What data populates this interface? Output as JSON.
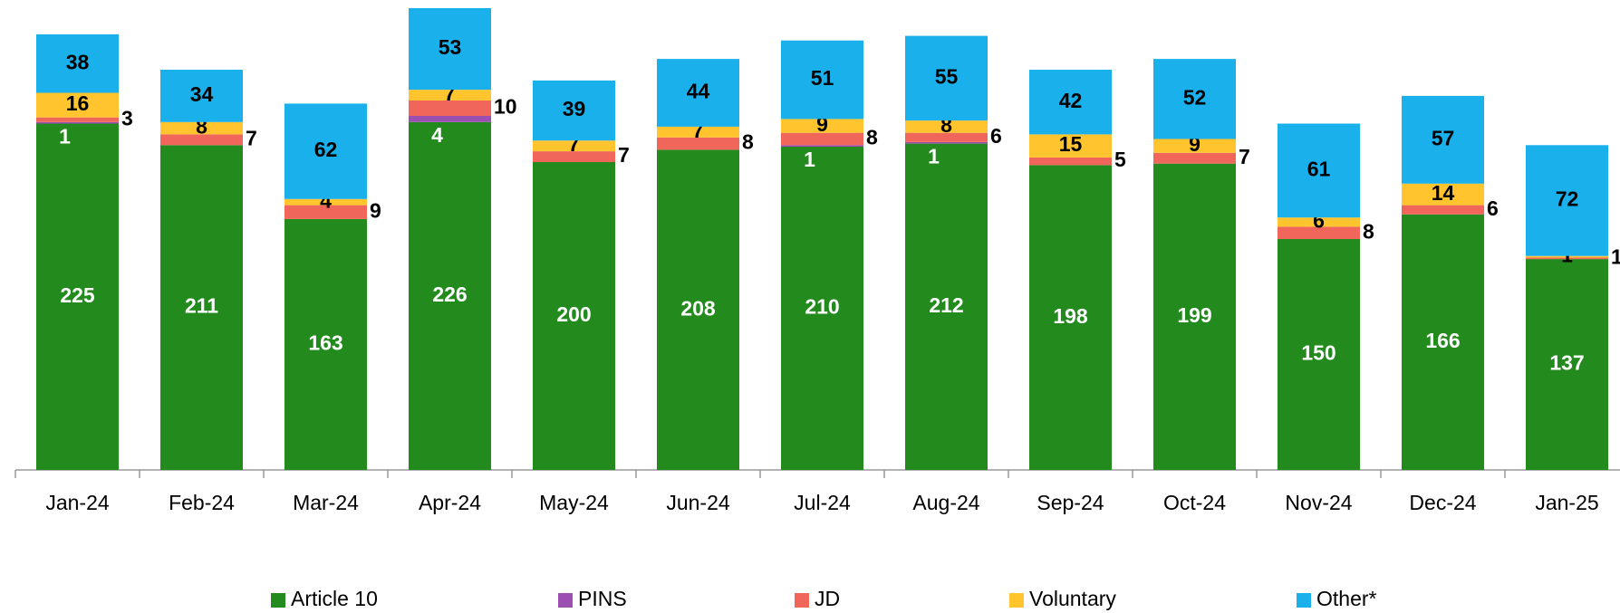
{
  "chart_data": {
    "type": "stacked-bar",
    "categories": [
      "Jan-24",
      "Feb-24",
      "Mar-24",
      "Apr-24",
      "May-24",
      "Jun-24",
      "Jul-24",
      "Aug-24",
      "Sep-24",
      "Oct-24",
      "Nov-24",
      "Dec-24",
      "Jan-25"
    ],
    "ylim": [
      0,
      300
    ],
    "legend": "bottom",
    "series": [
      {
        "name": "Article 10",
        "color": "#238b1e",
        "values": [
          225,
          211,
          163,
          226,
          200,
          208,
          210,
          212,
          198,
          199,
          150,
          166,
          137
        ]
      },
      {
        "name": "PINS",
        "color": "#9b4fb0",
        "values": [
          1,
          null,
          null,
          4,
          null,
          null,
          1,
          1,
          null,
          null,
          null,
          null,
          null
        ]
      },
      {
        "name": "JD",
        "color": "#f0665a",
        "values": [
          3,
          7,
          9,
          10,
          7,
          8,
          8,
          6,
          5,
          7,
          8,
          6,
          1
        ]
      },
      {
        "name": "Voluntary",
        "color": "#ffc42e",
        "values": [
          16,
          8,
          4,
          7,
          7,
          7,
          9,
          8,
          15,
          9,
          6,
          14,
          1
        ]
      },
      {
        "name": "Other*",
        "color": "#1ab0ec",
        "values": [
          38,
          34,
          62,
          53,
          39,
          44,
          51,
          55,
          42,
          52,
          61,
          57,
          72
        ]
      }
    ]
  }
}
